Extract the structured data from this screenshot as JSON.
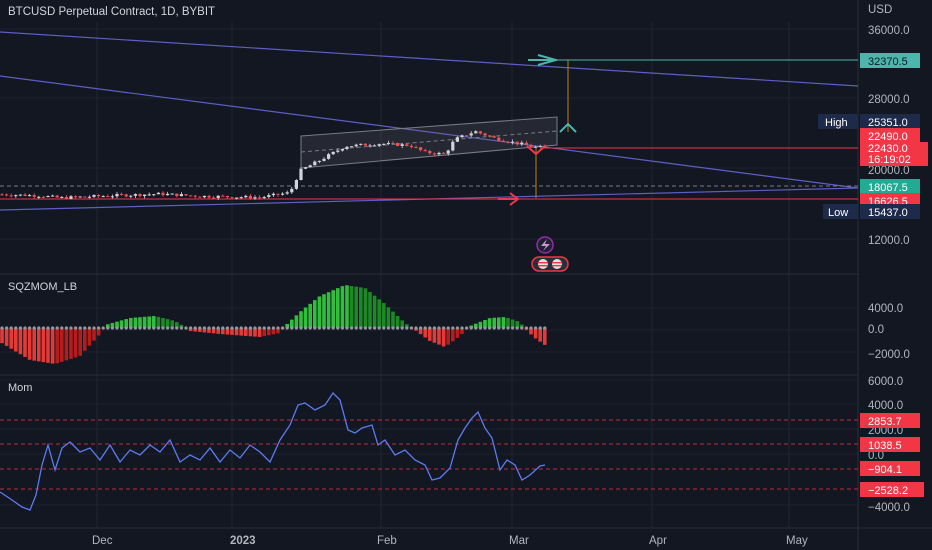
{
  "header": {
    "title": "BTCUSD Perpetual Contract, 1D, BYBIT"
  },
  "colors": {
    "bg": "#131722",
    "grid": "#2a2e39",
    "up": "#d1d4dc",
    "down": "#ef5350",
    "trend_line": "#5d5fc7",
    "mom_line": "#2962ff",
    "teal": "#4db6ac",
    "sqz_up": "#26a69a",
    "sqz_green_dark": "#1b8a25",
    "sqz_green_light": "#2fbf3a",
    "sqz_red_dark": "#b71c1c",
    "sqz_red_light": "#e53935",
    "high_low_badge": "#1e2a4a",
    "label_red": "#f23645",
    "label_green": "#22ab94"
  },
  "price_pane": {
    "axis_title": "USD",
    "ticks": [
      "36000.0",
      "28000.0",
      "20000.0",
      "12000.0"
    ],
    "labels": {
      "target": "32370.5",
      "high_name": "High",
      "high": "25351.0",
      "close_a": "22490.0",
      "close_b": "22430.0",
      "countdown": "16:19:02",
      "level_green": "18067.5",
      "level_red": "16626.5",
      "low_name": "Low",
      "low": "15437.0"
    }
  },
  "sqz_pane": {
    "title": "SQZMOM_LB",
    "ticks": [
      "4000.0",
      "0.0",
      "−2000.0"
    ]
  },
  "mom_pane": {
    "title": "Mom",
    "ticks": [
      "6000.0",
      "4000.0",
      "2000.0",
      "0.0",
      "−4000.0"
    ],
    "levels": [
      "2853.7",
      "1038.5",
      "−904.1",
      "−2528.2"
    ]
  },
  "x_axis": {
    "ticks": [
      "Dec",
      "2023",
      "Feb",
      "Mar",
      "Apr",
      "May"
    ]
  },
  "chart_data": {
    "type": "line",
    "title": "BTCUSD Perpetual Contract, 1D, BYBIT",
    "price_unit": "USD",
    "price_levels": {
      "target": 32370.5,
      "high": 25351.0,
      "close": 22430.0,
      "ask": 22490.0,
      "level_green": 18067.5,
      "level_red": 16626.5,
      "low": 15437.0
    },
    "approx_close_path": [
      [
        "Nov",
        17100
      ],
      [
        "Dec",
        16900
      ],
      [
        "2023",
        16600
      ],
      [
        "Jan mid",
        20800
      ],
      [
        "Feb",
        23600
      ],
      [
        "Feb mid",
        21800
      ],
      [
        "Feb late",
        24500
      ],
      [
        "Mar",
        22430
      ]
    ],
    "mom_levels": [
      2853.7,
      1038.5,
      -904.1,
      -2528.2
    ]
  }
}
